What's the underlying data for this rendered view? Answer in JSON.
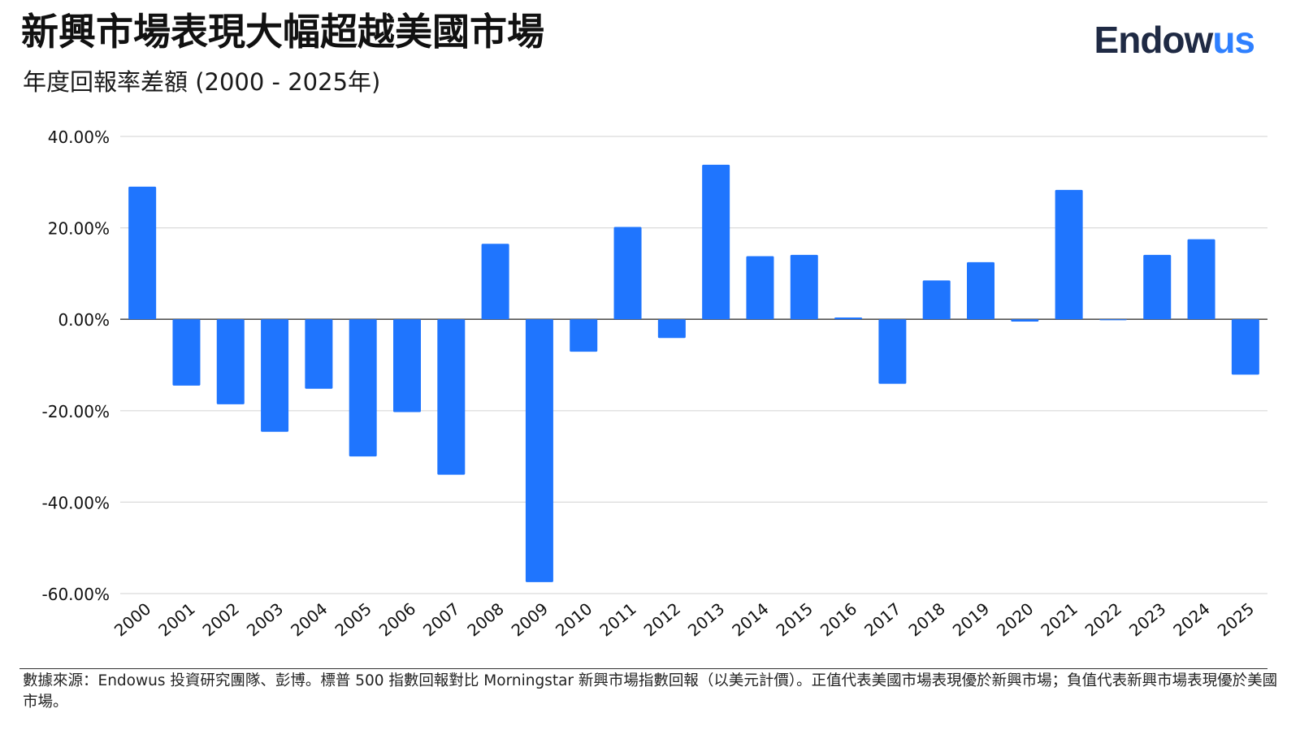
{
  "header": {
    "title": "新興市場表現大幅超越美國市場",
    "subtitle": "年度回報率差額 (2000 - 2025年)",
    "logo_part1": "Endow",
    "logo_part2": "us"
  },
  "colors": {
    "bar": "#1f75fe",
    "grid": "#d9d9d9",
    "zero_line": "#555555",
    "text": "#111111",
    "logo_dark": "#1f2a44",
    "logo_accent": "#2f80ff"
  },
  "chart_data": {
    "type": "bar",
    "title": "",
    "xlabel": "",
    "ylabel": "",
    "ylim": [
      -60,
      40
    ],
    "y_ticks": [
      40,
      20,
      0,
      -20,
      -40,
      -60
    ],
    "y_tick_labels": [
      "40.00%",
      "20.00%",
      "0.00%",
      "-20.00%",
      "-40.00%",
      "-60.00%"
    ],
    "grid": true,
    "legend": "none",
    "categories": [
      "2000",
      "2001",
      "2002",
      "2003",
      "2004",
      "2005",
      "2006",
      "2007",
      "2008",
      "2009",
      "2010",
      "2011",
      "2012",
      "2013",
      "2014",
      "2015",
      "2016",
      "2017",
      "2018",
      "2019",
      "2020",
      "2021",
      "2022",
      "2023",
      "2024",
      "2025"
    ],
    "values": [
      29.0,
      -14.5,
      -18.6,
      -24.6,
      -15.2,
      -30.0,
      -20.3,
      -34.0,
      16.5,
      -57.5,
      -7.1,
      20.2,
      -4.1,
      33.8,
      13.8,
      14.1,
      0.4,
      -14.1,
      8.5,
      12.5,
      -0.5,
      28.3,
      -0.2,
      14.1,
      17.5,
      -12.1
    ]
  },
  "footnote": "數據來源：Endowus 投資研究團隊、彭博。標普 500 指數回報對比 Morningstar 新興市場指數回報（以美元計價）。正值代表美國市場表現優於新興市場；負值代表新興市場表現優於美國市場。"
}
